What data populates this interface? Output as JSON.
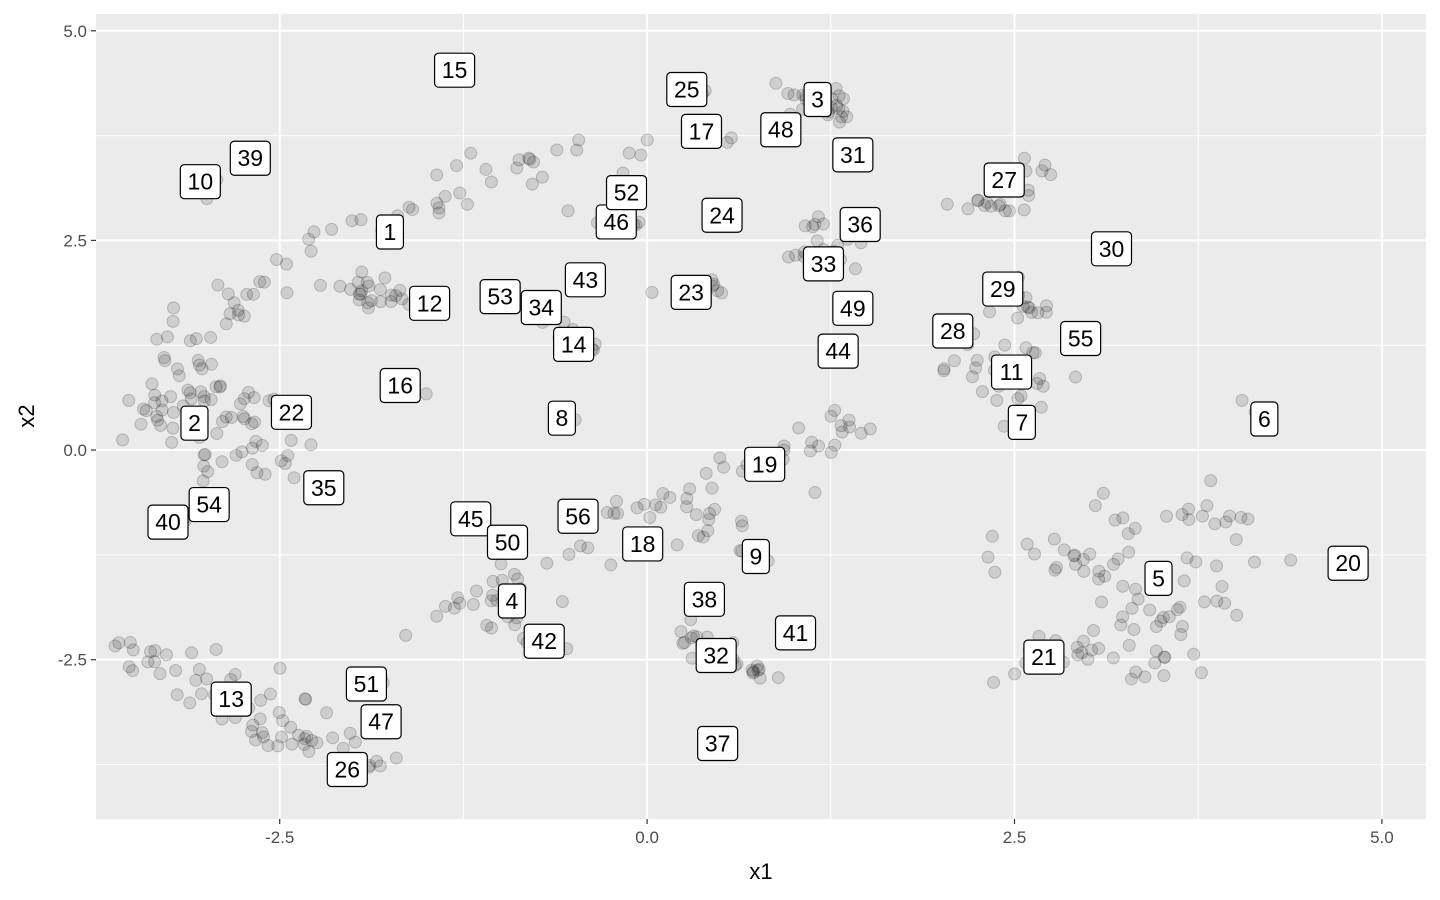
{
  "chart_data": {
    "type": "scatter",
    "title": "",
    "xlabel": "x1",
    "ylabel": "x2",
    "xlim": [
      -3.75,
      5.3
    ],
    "ylim": [
      -4.4,
      5.2
    ],
    "x_ticks": [
      -2.5,
      0.0,
      2.5,
      5.0
    ],
    "x_tick_labels": [
      "-2.5",
      "0.0",
      "2.5",
      "5.0"
    ],
    "y_ticks": [
      -2.5,
      0.0,
      2.5,
      5.0
    ],
    "y_tick_labels": [
      "-2.5",
      "0.0",
      "2.5",
      "5.0"
    ],
    "grid": true,
    "point_color": "#000000",
    "point_alpha": 0.12,
    "panel_background": "#ebebeb",
    "grid_color": "#ffffff",
    "labels": [
      {
        "text": "1",
        "x": -1.75,
        "y": 2.6
      },
      {
        "text": "2",
        "x": -3.08,
        "y": 0.32
      },
      {
        "text": "3",
        "x": 1.16,
        "y": 4.18
      },
      {
        "text": "4",
        "x": -0.92,
        "y": -1.8
      },
      {
        "text": "5",
        "x": 3.48,
        "y": -1.53
      },
      {
        "text": "6",
        "x": 4.2,
        "y": 0.37
      },
      {
        "text": "7",
        "x": 2.55,
        "y": 0.33
      },
      {
        "text": "8",
        "x": -0.58,
        "y": 0.38
      },
      {
        "text": "9",
        "x": 0.74,
        "y": -1.27
      },
      {
        "text": "10",
        "x": -3.04,
        "y": 3.2
      },
      {
        "text": "11",
        "x": 2.48,
        "y": 0.93
      },
      {
        "text": "12",
        "x": -1.48,
        "y": 1.75
      },
      {
        "text": "13",
        "x": -2.83,
        "y": -2.97
      },
      {
        "text": "14",
        "x": -0.5,
        "y": 1.26
      },
      {
        "text": "15",
        "x": -1.31,
        "y": 4.53
      },
      {
        "text": "16",
        "x": -1.68,
        "y": 0.77
      },
      {
        "text": "17",
        "x": 0.37,
        "y": 3.8
      },
      {
        "text": "18",
        "x": -0.03,
        "y": -1.12
      },
      {
        "text": "19",
        "x": 0.8,
        "y": -0.17
      },
      {
        "text": "20",
        "x": 4.77,
        "y": -1.35
      },
      {
        "text": "21",
        "x": 2.7,
        "y": -2.47
      },
      {
        "text": "22",
        "x": -2.42,
        "y": 0.45
      },
      {
        "text": "23",
        "x": 0.3,
        "y": 1.88
      },
      {
        "text": "24",
        "x": 0.51,
        "y": 2.8
      },
      {
        "text": "25",
        "x": 0.27,
        "y": 4.3
      },
      {
        "text": "26",
        "x": -2.04,
        "y": -3.81
      },
      {
        "text": "27",
        "x": 2.43,
        "y": 3.22
      },
      {
        "text": "28",
        "x": 2.08,
        "y": 1.42
      },
      {
        "text": "29",
        "x": 2.42,
        "y": 1.92
      },
      {
        "text": "30",
        "x": 3.16,
        "y": 2.4
      },
      {
        "text": "31",
        "x": 1.4,
        "y": 3.52
      },
      {
        "text": "32",
        "x": 0.47,
        "y": -2.45
      },
      {
        "text": "33",
        "x": 1.2,
        "y": 2.22
      },
      {
        "text": "34",
        "x": -0.72,
        "y": 1.7
      },
      {
        "text": "35",
        "x": -2.2,
        "y": -0.45
      },
      {
        "text": "36",
        "x": 1.45,
        "y": 2.69
      },
      {
        "text": "37",
        "x": 0.48,
        "y": -3.5
      },
      {
        "text": "38",
        "x": 0.39,
        "y": -1.78
      },
      {
        "text": "39",
        "x": -2.7,
        "y": 3.48
      },
      {
        "text": "40",
        "x": -3.26,
        "y": -0.86
      },
      {
        "text": "41",
        "x": 1.01,
        "y": -2.18
      },
      {
        "text": "42",
        "x": -0.7,
        "y": -2.28
      },
      {
        "text": "43",
        "x": -0.42,
        "y": 2.03
      },
      {
        "text": "44",
        "x": 1.3,
        "y": 1.18
      },
      {
        "text": "45",
        "x": -1.2,
        "y": -0.82
      },
      {
        "text": "46",
        "x": -0.21,
        "y": 2.72
      },
      {
        "text": "47",
        "x": -1.81,
        "y": -3.24
      },
      {
        "text": "48",
        "x": 0.91,
        "y": 3.82
      },
      {
        "text": "49",
        "x": 1.4,
        "y": 1.69
      },
      {
        "text": "50",
        "x": -0.95,
        "y": -1.1
      },
      {
        "text": "51",
        "x": -1.91,
        "y": -2.79
      },
      {
        "text": "52",
        "x": -0.14,
        "y": 3.07
      },
      {
        "text": "53",
        "x": -1.0,
        "y": 1.83
      },
      {
        "text": "54",
        "x": -2.98,
        "y": -0.65
      },
      {
        "text": "55",
        "x": 2.95,
        "y": 1.33
      },
      {
        "text": "56",
        "x": -0.47,
        "y": -0.79
      }
    ],
    "clusters": [
      {
        "points": [
          [
            -2.6,
            2.0
          ],
          [
            -2.3,
            2.4
          ],
          [
            -2.0,
            2.7
          ],
          [
            -1.6,
            2.95
          ],
          [
            -1.2,
            3.2
          ],
          [
            -0.8,
            3.35
          ],
          [
            -0.4,
            3.5
          ],
          [
            0.0,
            3.65
          ],
          [
            -1.9,
            1.9
          ],
          [
            -2.2,
            2.1
          ],
          [
            -1.6,
            1.8
          ],
          [
            -2.7,
            1.85
          ],
          [
            -2.9,
            1.6
          ],
          [
            -3.1,
            1.35
          ],
          [
            -3.15,
            1.0
          ]
        ],
        "spread": 0.13,
        "n": 80
      },
      {
        "points": [
          [
            -3.6,
            0.25
          ],
          [
            -3.3,
            0.5
          ],
          [
            -3.1,
            0.7
          ],
          [
            -2.9,
            0.5
          ],
          [
            -2.7,
            0.25
          ],
          [
            -2.5,
            0.0
          ],
          [
            -2.75,
            -0.15
          ],
          [
            -3.2,
            0.25
          ],
          [
            -3.0,
            1.0
          ],
          [
            -2.6,
            0.4
          ]
        ],
        "spread": 0.15,
        "n": 70
      },
      {
        "points": [
          [
            -3.55,
            -2.5
          ],
          [
            -3.3,
            -2.55
          ],
          [
            -3.1,
            -2.8
          ],
          [
            -2.9,
            -3.0
          ],
          [
            -2.7,
            -3.2
          ],
          [
            -2.5,
            -3.35
          ],
          [
            -2.3,
            -3.55
          ],
          [
            -2.1,
            -3.3
          ],
          [
            -3.2,
            -2.3
          ],
          [
            -2.6,
            -3.6
          ]
        ],
        "spread": 0.13,
        "n": 60
      },
      {
        "points": [
          [
            -1.6,
            -2.15
          ],
          [
            -1.4,
            -2.0
          ],
          [
            -1.1,
            -1.7
          ],
          [
            -0.8,
            -1.5
          ],
          [
            -0.5,
            -1.3
          ],
          [
            -0.2,
            -0.9
          ],
          [
            0.1,
            -0.6
          ],
          [
            0.4,
            -0.35
          ],
          [
            0.7,
            -0.15
          ],
          [
            1.0,
            -0.05
          ],
          [
            1.25,
            0.2
          ],
          [
            1.45,
            0.3
          ],
          [
            -1.2,
            -2.2
          ],
          [
            -0.9,
            -2.05
          ],
          [
            1.2,
            -0.35
          ]
        ],
        "spread": 0.12,
        "n": 80
      },
      {
        "points": [
          [
            2.6,
            -1.2
          ],
          [
            2.9,
            -1.45
          ],
          [
            3.2,
            -1.6
          ],
          [
            3.5,
            -1.9
          ],
          [
            3.8,
            -2.1
          ],
          [
            3.95,
            -1.6
          ],
          [
            4.1,
            -1.1
          ],
          [
            3.9,
            -0.7
          ],
          [
            3.5,
            -0.8
          ],
          [
            3.15,
            -0.7
          ],
          [
            3.6,
            -2.45
          ],
          [
            3.3,
            -2.5
          ],
          [
            3.85,
            -1.3
          ]
        ],
        "spread": 0.15,
        "n": 80
      },
      {
        "points": [
          [
            2.35,
            -2.8
          ],
          [
            2.6,
            -2.6
          ],
          [
            2.85,
            -2.45
          ],
          [
            3.05,
            -2.35
          ],
          [
            2.55,
            -2.25
          ]
        ],
        "spread": 0.08,
        "n": 20
      },
      {
        "points": [
          [
            0.1,
            -2.2
          ],
          [
            0.35,
            -2.4
          ],
          [
            0.6,
            -2.6
          ],
          [
            0.85,
            -2.75
          ],
          [
            0.25,
            -2.1
          ]
        ],
        "spread": 0.1,
        "n": 24
      },
      {
        "points": [
          [
            -1.95,
            -3.8
          ],
          [
            -2.1,
            -3.75
          ],
          [
            -1.75,
            -3.7
          ]
        ],
        "spread": 0.06,
        "n": 10
      },
      {
        "points": [
          [
            0.8,
            4.2
          ],
          [
            1.1,
            4.3
          ],
          [
            1.3,
            4.2
          ],
          [
            1.35,
            4.0
          ],
          [
            1.0,
            4.1
          ]
        ],
        "spread": 0.07,
        "n": 24
      },
      {
        "points": [
          [
            2.3,
            3.1
          ],
          [
            2.6,
            3.35
          ],
          [
            2.2,
            2.9
          ],
          [
            2.5,
            2.95
          ],
          [
            2.75,
            3.4
          ]
        ],
        "spread": 0.08,
        "n": 20
      },
      {
        "points": [
          [
            2.0,
            0.9
          ],
          [
            2.3,
            1.0
          ],
          [
            2.6,
            1.1
          ],
          [
            2.85,
            0.8
          ],
          [
            2.4,
            0.7
          ],
          [
            2.25,
            1.3
          ],
          [
            2.55,
            0.3
          ]
        ],
        "spread": 0.09,
        "n": 28
      },
      {
        "points": [
          [
            2.25,
            2.1
          ],
          [
            2.5,
            1.85
          ],
          [
            2.65,
            1.6
          ],
          [
            2.35,
            1.65
          ]
        ],
        "spread": 0.07,
        "n": 16
      },
      {
        "points": [
          [
            1.0,
            2.4
          ],
          [
            1.2,
            2.1
          ],
          [
            1.35,
            2.3
          ],
          [
            1.1,
            2.6
          ],
          [
            1.4,
            2.75
          ],
          [
            1.35,
            1.7
          ]
        ],
        "spread": 0.07,
        "n": 20
      },
      {
        "points": [
          [
            -0.3,
            2.75
          ],
          [
            -0.1,
            2.65
          ],
          [
            -0.5,
            2.8
          ]
        ],
        "spread": 0.06,
        "n": 10
      },
      {
        "points": [
          [
            -0.55,
            1.25
          ],
          [
            -0.35,
            1.3
          ],
          [
            -0.65,
            1.45
          ],
          [
            -0.8,
            1.65
          ]
        ],
        "spread": 0.07,
        "n": 14
      },
      {
        "points": [
          [
            0.15,
            1.85
          ],
          [
            0.45,
            1.95
          ],
          [
            0.55,
            1.85
          ]
        ],
        "spread": 0.06,
        "n": 10
      },
      {
        "points": [
          [
            0.45,
            2.75
          ],
          [
            0.6,
            2.8
          ]
        ],
        "spread": 0.05,
        "n": 6
      },
      {
        "points": [
          [
            0.25,
            4.3
          ],
          [
            0.45,
            4.25
          ]
        ],
        "spread": 0.05,
        "n": 6
      },
      {
        "points": [
          [
            0.35,
            3.75
          ],
          [
            0.55,
            3.7
          ]
        ],
        "spread": 0.05,
        "n": 5
      },
      {
        "points": [
          [
            4.05,
            0.55
          ],
          [
            4.2,
            0.35
          ],
          [
            4.28,
            0.2
          ]
        ],
        "spread": 0.04,
        "n": 8
      },
      {
        "points": [
          [
            4.65,
            -1.35
          ],
          [
            4.85,
            -1.4
          ]
        ],
        "spread": 0.05,
        "n": 6
      },
      {
        "points": [
          [
            0.65,
            -1.2
          ],
          [
            0.85,
            -1.3
          ]
        ],
        "spread": 0.06,
        "n": 6
      },
      {
        "points": [
          [
            -1.7,
            0.8
          ],
          [
            -1.55,
            0.7
          ]
        ],
        "spread": 0.05,
        "n": 6
      },
      {
        "points": [
          [
            -1.35,
            4.55
          ],
          [
            -1.2,
            4.4
          ]
        ],
        "spread": 0.04,
        "n": 6
      },
      {
        "points": [
          [
            -3.05,
            3.1
          ],
          [
            -2.75,
            3.4
          ]
        ],
        "spread": 0.05,
        "n": 6
      },
      {
        "points": [
          [
            -0.6,
            0.4
          ],
          [
            -0.5,
            0.3
          ]
        ],
        "spread": 0.04,
        "n": 5
      },
      {
        "points": [
          [
            -2.2,
            -0.5
          ]
        ],
        "spread": 0.05,
        "n": 4
      },
      {
        "points": [
          [
            -3.15,
            -0.9
          ],
          [
            -3.25,
            -0.7
          ]
        ],
        "spread": 0.05,
        "n": 5
      },
      {
        "points": [
          [
            -0.8,
            -2.3
          ],
          [
            -0.6,
            -2.35
          ]
        ],
        "spread": 0.05,
        "n": 6
      },
      {
        "points": [
          [
            -1.9,
            -2.8
          ],
          [
            -1.8,
            -2.7
          ]
        ],
        "spread": 0.04,
        "n": 4
      },
      {
        "points": [
          [
            -1.7,
            1.8
          ],
          [
            -1.85,
            1.75
          ]
        ],
        "spread": 0.04,
        "n": 4
      }
    ]
  }
}
